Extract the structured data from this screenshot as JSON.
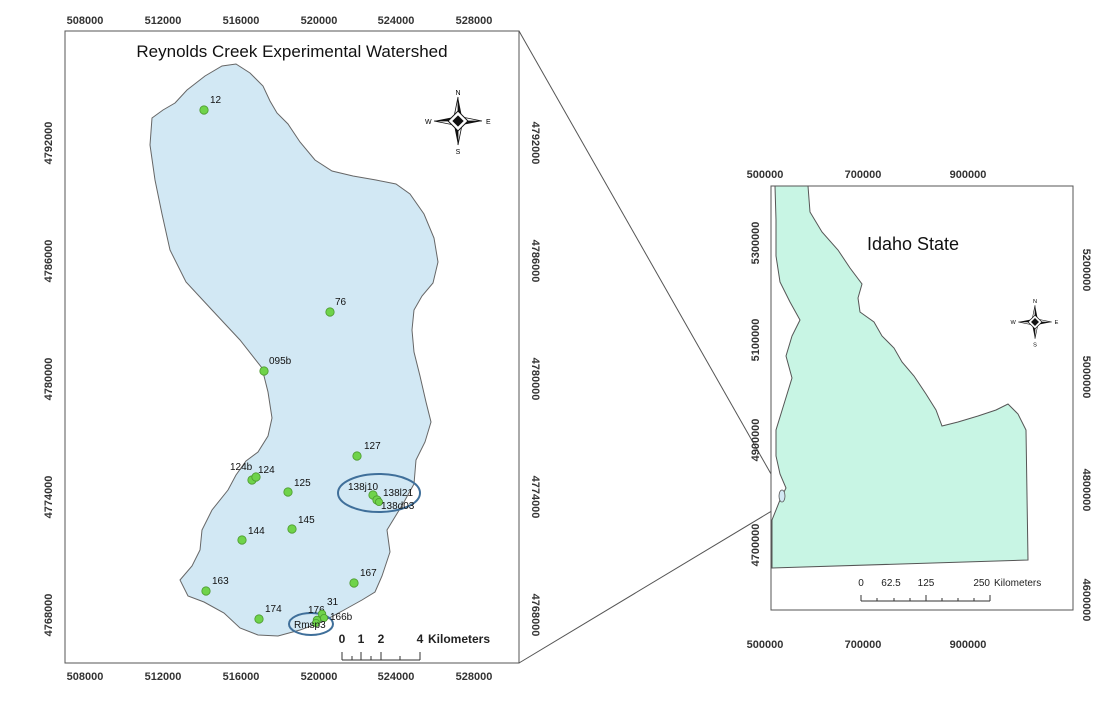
{
  "main_map": {
    "title": "Reynolds Creek Experimental Watershed",
    "x_ticks": [
      "508000",
      "512000",
      "516000",
      "520000",
      "524000",
      "528000"
    ],
    "y_ticks": [
      "4792000",
      "4786000",
      "4780000",
      "4774000",
      "4768000"
    ],
    "stations": [
      {
        "label": "12"
      },
      {
        "label": "76"
      },
      {
        "label": "095b"
      },
      {
        "label": "127"
      },
      {
        "label": "124b"
      },
      {
        "label": "124"
      },
      {
        "label": "125"
      },
      {
        "label": "138j10"
      },
      {
        "label": "138l21"
      },
      {
        "label": "138d03"
      },
      {
        "label": "145"
      },
      {
        "label": "144"
      },
      {
        "label": "163"
      },
      {
        "label": "167"
      },
      {
        "label": "174"
      },
      {
        "label": "176"
      },
      {
        "label": "31"
      },
      {
        "label": "166b"
      },
      {
        "label": "Rmsp3"
      }
    ],
    "scalebar": {
      "ticks": [
        "0",
        "1",
        "2",
        "4"
      ],
      "unit": "Kilometers"
    },
    "compass": {
      "n": "N",
      "s": "S",
      "e": "E",
      "w": "W"
    },
    "colors": {
      "watershed": "#d2e8f4",
      "station": "#6fd34a",
      "circle": "#3f6f9a"
    }
  },
  "inset_map": {
    "title": "Idaho State",
    "x_ticks": [
      "500000",
      "700000",
      "900000"
    ],
    "y_ticks_left": [
      "5300000",
      "5100000",
      "4900000",
      "4700000"
    ],
    "y_ticks_right": [
      "5200000",
      "5000000",
      "4800000",
      "4600000"
    ],
    "scalebar": {
      "ticks": [
        "0",
        "62.5",
        "125",
        "250"
      ],
      "unit": "Kilometers"
    },
    "compass": {
      "n": "N",
      "s": "S",
      "e": "E",
      "w": "W"
    },
    "colors": {
      "state": "#c8f5e4"
    }
  }
}
